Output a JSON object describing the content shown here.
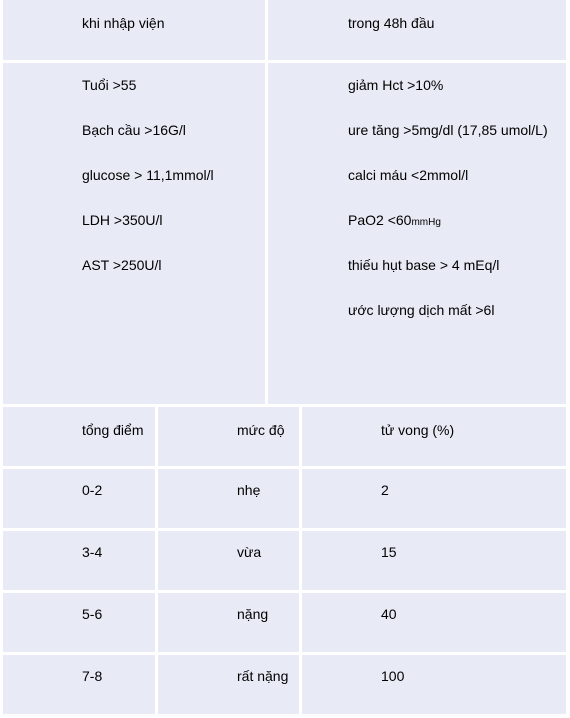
{
  "ranson": {
    "admission_header": "khi nhập viện",
    "h48_header": "trong 48h đầu",
    "admission_criteria": [
      "Tuổi >55",
      "Bạch cầu >16G/l",
      "glucose > 11,1mmol/l",
      "LDH >350U/l",
      "AST >250U/l"
    ],
    "h48_criteria": [
      "giảm Hct >10%",
      "ure tăng >5mg/dl (17,85 umol/L)",
      "calci máu <2mmol/l",
      "PaO2 <60",
      "thiếu hụt base > 4 mEq/l",
      "ước lượng dịch mất >6l"
    ],
    "pao2_unit": "mmHg"
  },
  "severity": {
    "headers": [
      "tổng điểm",
      "mức độ",
      "tử vong (%)"
    ],
    "rows": [
      [
        "0-2",
        "nhẹ",
        "2"
      ],
      [
        "3-4",
        "vừa",
        "15"
      ],
      [
        "5-6",
        "nặng",
        "40"
      ],
      [
        "7-8",
        "rất nặng",
        "100"
      ]
    ]
  }
}
